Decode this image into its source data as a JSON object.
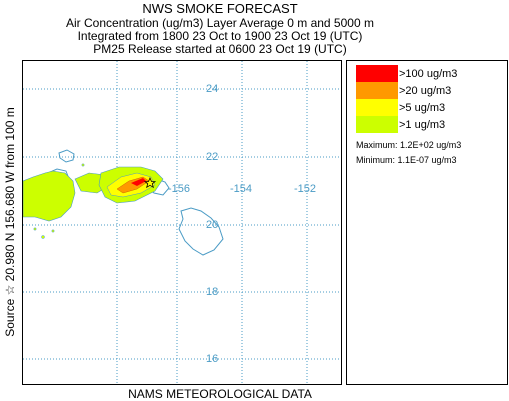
{
  "header": {
    "title": "NWS SMOKE FORECAST",
    "line2": "Air Concentration (ug/m3) Layer Average    0 m and  5000 m",
    "line3": "Integrated from 1800 23 Oct to 1900 23 Oct 19 (UTC)",
    "line4": "PM25 Release started at 0600 23 Oct 19 (UTC)"
  },
  "side_label": "Source ☆  20.980 N 156.680  W       from  100 m",
  "map": {
    "lat_labels": [
      "24",
      "22",
      "20",
      "18",
      "16"
    ],
    "lon_labels": [
      "-156",
      "-154",
      "-152"
    ],
    "gridline_color": "#4a9bc5",
    "coast_color": "#4a9bc5",
    "source_marker": "star-icon"
  },
  "legend": {
    "items": [
      {
        "label": ">100 ug/m3",
        "color": "#ff0000"
      },
      {
        "label": ">20 ug/m3",
        "color": "#ff9900"
      },
      {
        "label": ">5 ug/m3",
        "color": "#ffff00"
      },
      {
        "label": ">1 ug/m3",
        "color": "#ccff00"
      }
    ],
    "maximum": "Maximum: 1.2E+02 ug/m3",
    "minimum": "Minimum: 1.1E-07 ug/m3"
  },
  "footer": "NAMS METEOROLOGICAL DATA"
}
